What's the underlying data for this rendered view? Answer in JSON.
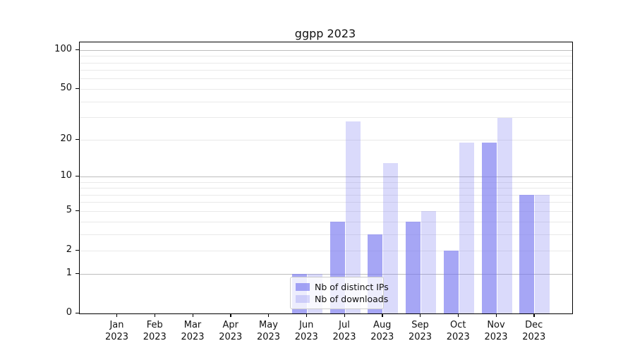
{
  "title": "ggpp 2023",
  "chart_data": {
    "type": "bar",
    "title": "ggpp 2023",
    "categories": [
      "Jan",
      "Feb",
      "Mar",
      "Apr",
      "May",
      "Jun",
      "Jul",
      "Aug",
      "Sep",
      "Oct",
      "Nov",
      "Dec"
    ],
    "year": "2023",
    "series": [
      {
        "name": "Nb of distinct IPs",
        "color": "rgba(120,120,240,0.66)",
        "values": [
          0,
          0,
          0,
          0,
          0,
          1,
          4,
          3,
          4,
          2,
          19,
          7
        ]
      },
      {
        "name": "Nb of downloads",
        "color": "rgba(120,120,240,0.27)",
        "values": [
          0,
          0,
          0,
          0,
          0,
          1,
          28,
          13,
          5,
          19,
          30,
          7
        ]
      }
    ],
    "xlabel": "",
    "ylabel": "",
    "yscale": "log1p",
    "ylim": [
      0,
      115
    ],
    "yticks": [
      0,
      1,
      2,
      5,
      10,
      20,
      50,
      100
    ],
    "grid": {
      "major_values": [
        1,
        10,
        100
      ],
      "minor_values": [
        2,
        3,
        4,
        5,
        6,
        7,
        8,
        9,
        20,
        30,
        40,
        50,
        60,
        70,
        80,
        90
      ],
      "major_color": "#bdbdbd",
      "minor_color": "#e9e9e9"
    },
    "legend_position": "lower-center-inside"
  }
}
